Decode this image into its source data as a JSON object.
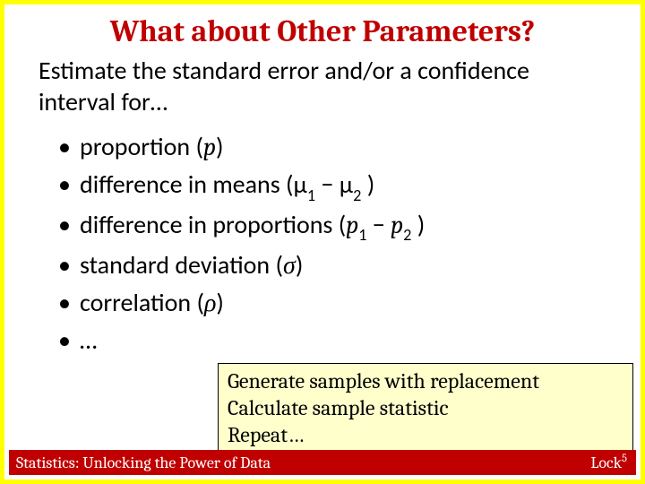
{
  "slide": {
    "title": "What about Other Parameters?",
    "title_color": "#c00000",
    "title_fontsize": 34,
    "intro": "Estimate the standard error and/or a confidence interval for…",
    "intro_fontsize": 28,
    "bullets_fontsize": 28,
    "bullets": [
      {
        "label": "proportion",
        "symbol_pre": "(",
        "symbol": "p",
        "symbol_post": ")"
      },
      {
        "label": "difference in means",
        "expr_html": "(μ<span class=\"math-sub\">1</span>  − μ<span class=\"math-sub\">2</span> )"
      },
      {
        "label": "difference in proportions",
        "expr_html": "(<span class=\"ital\">p</span><span class=\"math-sub\">1</span>  − <span class=\"ital\">p</span><span class=\"math-sub\">2</span> )"
      },
      {
        "label": "standard deviation",
        "symbol_pre": "(",
        "symbol": "σ",
        "symbol_post": ")"
      },
      {
        "label": "correlation",
        "symbol_pre": "(",
        "symbol": "ρ",
        "symbol_post": ")"
      },
      {
        "label": "…"
      }
    ],
    "callout": {
      "lines": [
        "Generate samples with replacement",
        "Calculate sample statistic",
        "Repeat…"
      ],
      "background": "#ffffcc",
      "border": "#000000",
      "fontsize": 24
    },
    "footer": {
      "left": "Statistics: Unlocking the Power of Data",
      "right_base": "Lock",
      "right_sup": "5",
      "background": "#c00000",
      "color": "#ffffff",
      "fontsize": 18
    },
    "border_color": "#ffff00",
    "background": "#ffffff"
  }
}
